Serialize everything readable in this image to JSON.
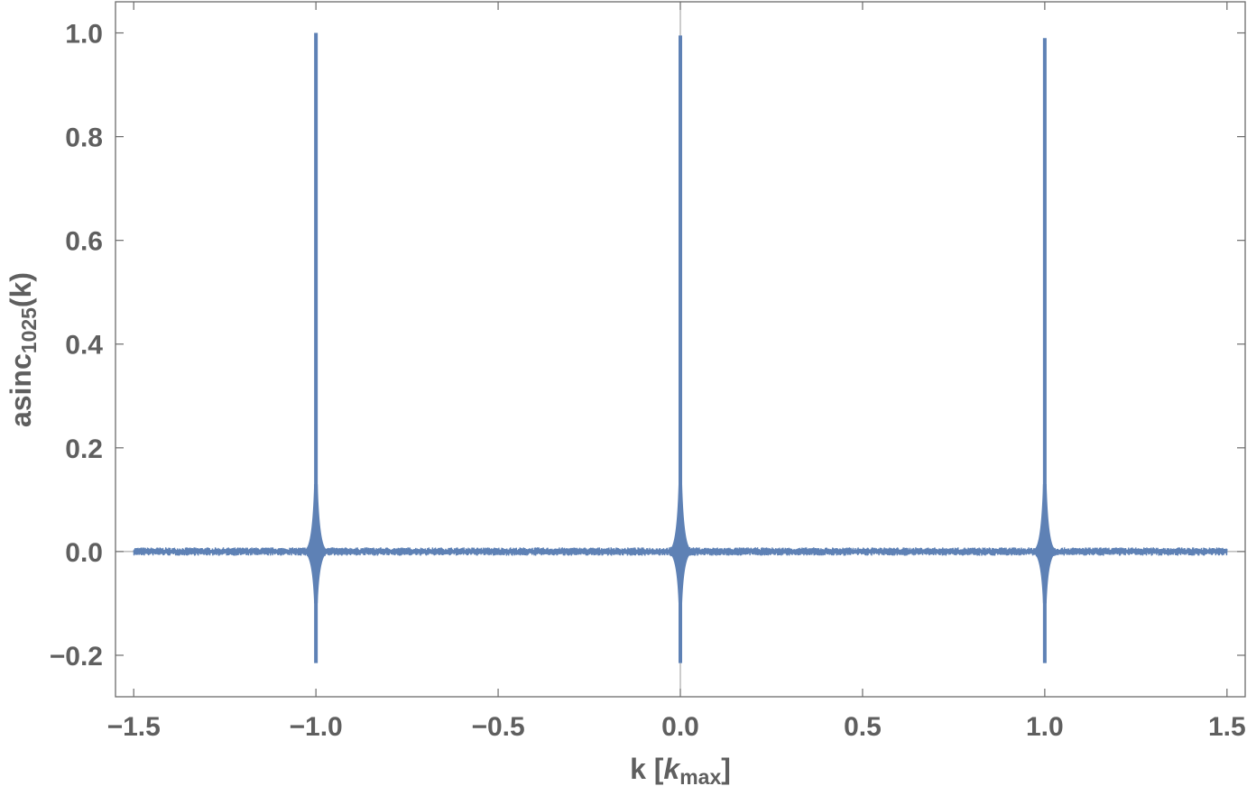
{
  "chart_data": {
    "type": "line",
    "xlabel": {
      "main": "k [",
      "italic": "k",
      "sub": "max",
      "close": "]"
    },
    "ylabel": {
      "main": "asinc",
      "sub": "1025",
      "close": "(k)"
    },
    "xlim": [
      -1.55,
      1.55
    ],
    "ylim": [
      -0.28,
      1.06
    ],
    "xticks": [
      {
        "value": -1.5,
        "label": "−1.5"
      },
      {
        "value": -1.0,
        "label": "−1.0"
      },
      {
        "value": -0.5,
        "label": "−0.5"
      },
      {
        "value": 0.0,
        "label": "0.0"
      },
      {
        "value": 0.5,
        "label": "0.5"
      },
      {
        "value": 1.0,
        "label": "1.0"
      },
      {
        "value": 1.5,
        "label": "1.5"
      }
    ],
    "yticks": [
      {
        "value": -0.2,
        "label": "−0.2"
      },
      {
        "value": 0.0,
        "label": "0.0"
      },
      {
        "value": 0.2,
        "label": "0.2"
      },
      {
        "value": 0.4,
        "label": "0.4"
      },
      {
        "value": 0.6,
        "label": "0.6"
      },
      {
        "value": 0.8,
        "label": "0.8"
      },
      {
        "value": 1.0,
        "label": "1.0"
      }
    ],
    "series": [
      {
        "x_range": [
          -1.5,
          1.5
        ],
        "peaks": [
          {
            "x": -1.0,
            "max": 1.0,
            "min": -0.215
          },
          {
            "x": 0.0,
            "max": 0.995,
            "min": -0.215
          },
          {
            "x": 1.0,
            "max": 0.99,
            "min": -0.215
          }
        ],
        "baseline_y": 0.0,
        "noise_amplitude": 0.008
      }
    ],
    "colors": {
      "series": "#5e81b5",
      "axes": "#6b6b6b",
      "text": "#5f5f5f",
      "zero_lines": "#9a9a9a"
    },
    "grid": false,
    "frame": true
  }
}
